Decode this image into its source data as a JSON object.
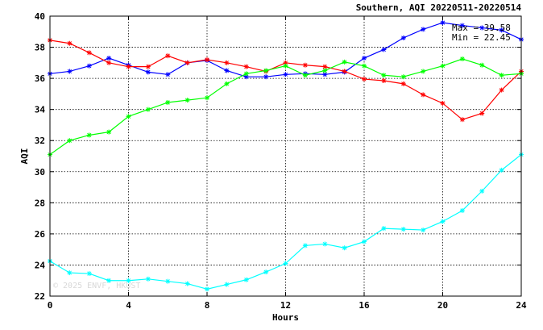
{
  "chart_data": {
    "type": "line",
    "title": "Southern, AQI 20220511-20220514",
    "xlabel": "Hours",
    "ylabel": "AQI",
    "xlim": [
      0,
      24
    ],
    "ylim": [
      22,
      40
    ],
    "x_ticks": [
      0,
      4,
      8,
      12,
      16,
      20,
      24
    ],
    "y_ticks": [
      22,
      24,
      26,
      28,
      30,
      32,
      34,
      36,
      38,
      40
    ],
    "grid": true,
    "marker": "asterisk",
    "annotations": {
      "max": "Max = 39.58",
      "min": "Min = 22.45"
    },
    "watermark": "© 2025 ENVF, HKUST",
    "x": [
      0,
      1,
      2,
      3,
      4,
      5,
      6,
      7,
      8,
      9,
      10,
      11,
      12,
      13,
      14,
      15,
      16,
      17,
      18,
      19,
      20,
      21,
      22,
      23,
      24
    ],
    "series": [
      {
        "color": "#0000ff",
        "values": [
          36.3,
          36.45,
          36.8,
          37.3,
          36.85,
          36.4,
          36.25,
          37.0,
          37.15,
          36.5,
          36.1,
          36.1,
          36.25,
          36.3,
          36.25,
          36.4,
          37.3,
          37.85,
          38.6,
          39.15,
          39.58,
          39.4,
          39.25,
          39.1,
          38.5
        ]
      },
      {
        "color": "#ff0000",
        "values": [
          38.45,
          38.25,
          37.65,
          37.0,
          36.75,
          36.75,
          37.45,
          37.0,
          37.2,
          37.0,
          36.75,
          36.45,
          37.0,
          36.85,
          36.75,
          36.45,
          35.95,
          35.85,
          35.65,
          34.95,
          34.4,
          33.35,
          33.75,
          35.25,
          36.45
        ]
      },
      {
        "color": "#00ff00",
        "values": [
          31.1,
          32.0,
          32.35,
          32.55,
          33.55,
          34.0,
          34.45,
          34.6,
          34.75,
          35.65,
          36.3,
          36.5,
          36.8,
          36.2,
          36.5,
          37.05,
          36.8,
          36.2,
          36.1,
          36.45,
          36.8,
          37.25,
          36.85,
          36.2,
          36.3
        ]
      },
      {
        "color": "#00ffff",
        "values": [
          24.25,
          23.5,
          23.45,
          23.0,
          23.0,
          23.1,
          22.95,
          22.8,
          22.45,
          22.75,
          23.05,
          23.55,
          24.1,
          25.25,
          25.35,
          25.1,
          25.5,
          26.35,
          26.3,
          26.25,
          26.8,
          27.5,
          28.75,
          30.1,
          31.1
        ]
      }
    ]
  }
}
